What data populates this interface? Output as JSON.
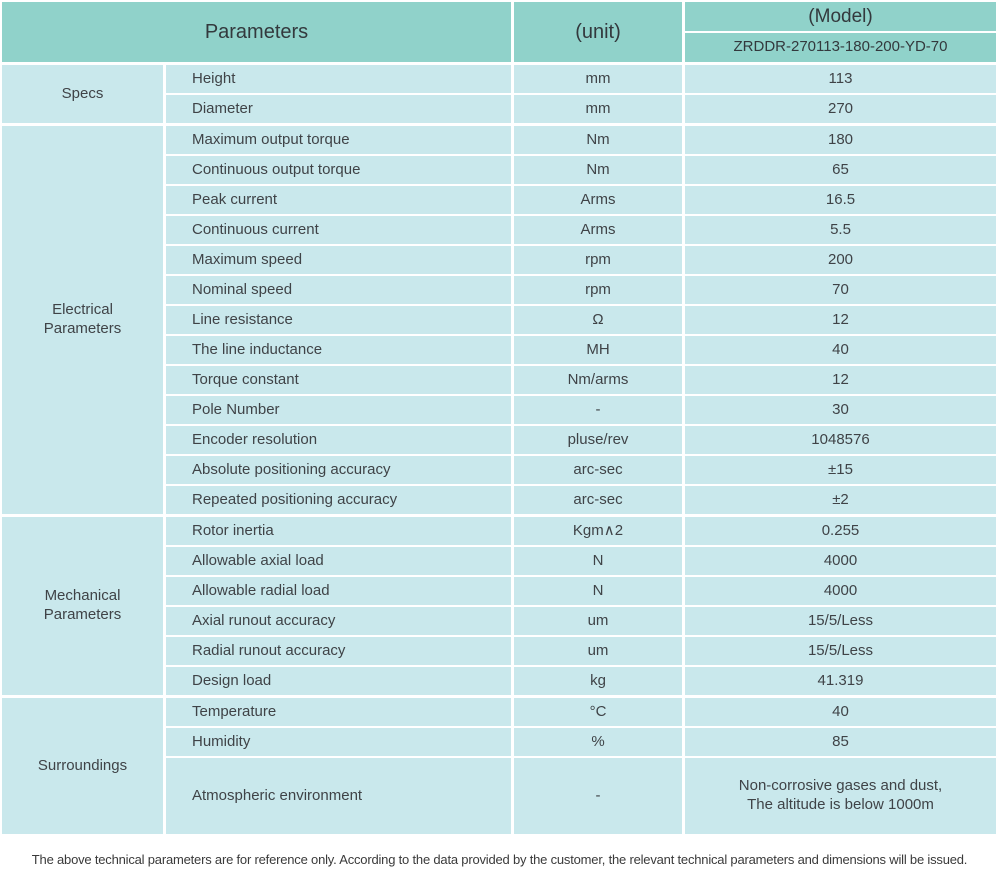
{
  "colors": {
    "header_bg": "#90d2ca",
    "body_bg": "#c9e8ec",
    "divider": "#ffffff",
    "text": "#3f4347"
  },
  "header": {
    "parameters_label": "Parameters",
    "unit_label": "(unit)",
    "model_label": "(Model)",
    "model_value": "ZRDDR-270113-180-200-YD-70"
  },
  "sections": [
    {
      "group": "Specs",
      "rows": [
        {
          "param": "Height",
          "unit": "mm",
          "value": "113"
        },
        {
          "param": "Diameter",
          "unit": "mm",
          "value": "270"
        }
      ]
    },
    {
      "group": "Electrical\nParameters",
      "rows": [
        {
          "param": "Maximum output torque",
          "unit": "Nm",
          "value": "180"
        },
        {
          "param": "Continuous output torque",
          "unit": "Nm",
          "value": "65"
        },
        {
          "param": "Peak current",
          "unit": "Arms",
          "value": "16.5"
        },
        {
          "param": "Continuous current",
          "unit": "Arms",
          "value": "5.5"
        },
        {
          "param": "Maximum speed",
          "unit": "rpm",
          "value": "200"
        },
        {
          "param": "Nominal speed",
          "unit": "rpm",
          "value": "70"
        },
        {
          "param": "Line resistance",
          "unit": "Ω",
          "value": "12"
        },
        {
          "param": "The line inductance",
          "unit": "MH",
          "value": "40"
        },
        {
          "param": "Torque constant",
          "unit": "Nm/arms",
          "value": "12"
        },
        {
          "param": "Pole Number",
          "unit": "-",
          "value": "30"
        },
        {
          "param": "Encoder resolution",
          "unit": "pluse/rev",
          "value": "1048576"
        },
        {
          "param": "Absolute positioning accuracy",
          "unit": "arc-sec",
          "value": "±15"
        },
        {
          "param": "Repeated positioning accuracy",
          "unit": "arc-sec",
          "value": "±2"
        }
      ]
    },
    {
      "group": "Mechanical\nParameters",
      "rows": [
        {
          "param": "Rotor inertia",
          "unit": "Kgm∧2",
          "value": "0.255"
        },
        {
          "param": "Allowable axial load",
          "unit": "N",
          "value": "4000"
        },
        {
          "param": "Allowable radial load",
          "unit": "N",
          "value": "4000"
        },
        {
          "param": "Axial runout accuracy",
          "unit": "um",
          "value": "15/5/Less"
        },
        {
          "param": "Radial runout accuracy",
          "unit": "um",
          "value": "15/5/Less"
        },
        {
          "param": "Design load",
          "unit": "kg",
          "value": "41.319"
        }
      ]
    },
    {
      "group": "Surroundings",
      "rows": [
        {
          "param": "Temperature",
          "unit": "°C",
          "value": "40"
        },
        {
          "param": "Humidity",
          "unit": "%",
          "value": "85"
        },
        {
          "param": "Atmospheric environment",
          "unit": "-",
          "value": "Non-corrosive gases and dust,\nThe altitude is below 1000m"
        }
      ]
    }
  ],
  "footer": {
    "note": "The above technical parameters are for reference only. According to the data provided by the customer, the relevant technical parameters and dimensions will be issued."
  }
}
